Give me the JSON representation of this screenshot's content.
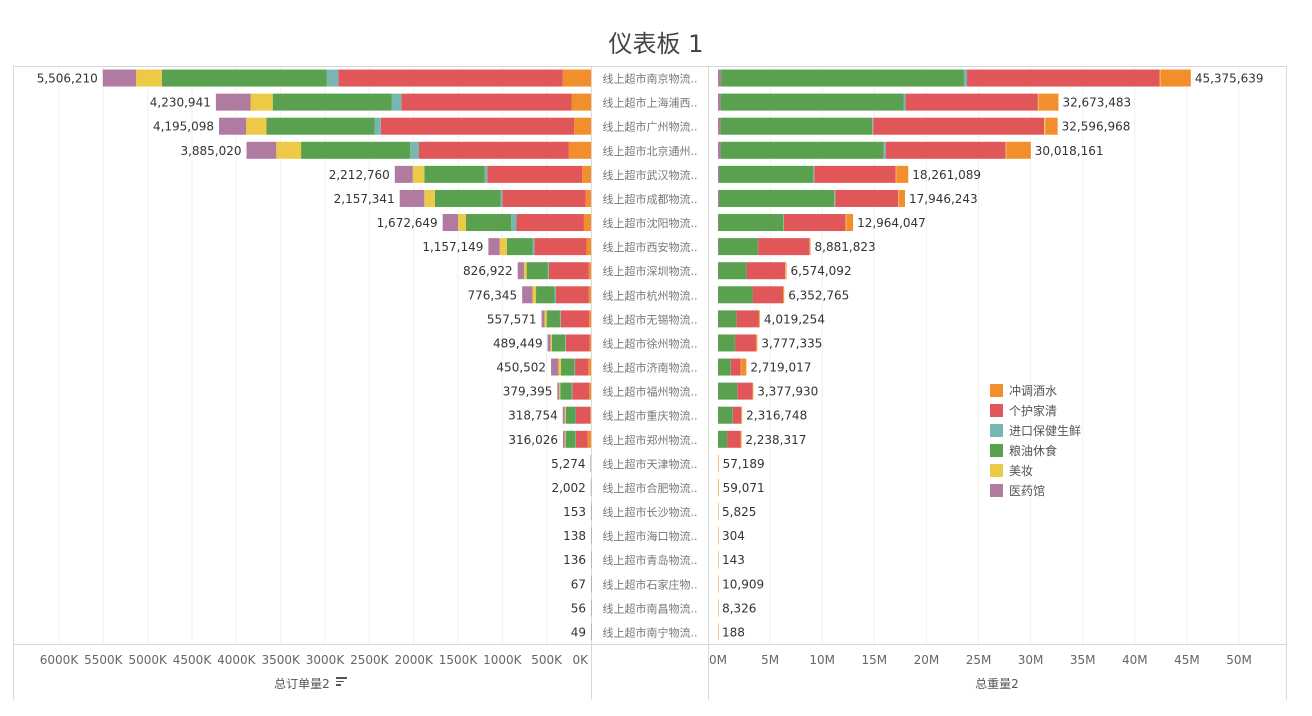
{
  "dashboard": {
    "title": "仪表板 1"
  },
  "legend": {
    "items": [
      {
        "label": "冲调酒水",
        "color": "#F28E2B"
      },
      {
        "label": "个护家清",
        "color": "#E15759"
      },
      {
        "label": "进口保健生鲜",
        "color": "#76B7B2"
      },
      {
        "label": "粮油休食",
        "color": "#59A14F"
      },
      {
        "label": "美妆",
        "color": "#EDC948"
      },
      {
        "label": "医药馆",
        "color": "#B07AA1"
      }
    ]
  },
  "chart_data": [
    {
      "type": "bar",
      "orientation": "horizontal",
      "stacked": true,
      "reversed_axis": true,
      "xlabel": "总订单量2",
      "ticks": [
        "6000K",
        "5500K",
        "5000K",
        "4500K",
        "4000K",
        "3500K",
        "3000K",
        "2500K",
        "2000K",
        "1500K",
        "1000K",
        "500K",
        "0K"
      ],
      "xlim": [
        0,
        6000000
      ],
      "categories": [
        "线上超市南京物流..",
        "线上超市上海浦西..",
        "线上超市广州物流..",
        "线上超市北京通州..",
        "线上超市武汉物流..",
        "线上超市成都物流..",
        "线上超市沈阳物流..",
        "线上超市西安物流..",
        "线上超市深圳物流..",
        "线上超市杭州物流..",
        "线上超市无锡物流..",
        "线上超市徐州物流..",
        "线上超市济南物流..",
        "线上超市福州物流..",
        "线上超市重庆物流..",
        "线上超市郑州物流..",
        "线上超市天津物流..",
        "线上超市合肥物流..",
        "线上超市长沙物流..",
        "线上超市海口物流..",
        "线上超市青岛物流..",
        "线上超市石家庄物..",
        "线上超市南昌物流..",
        "线上超市南宁物流.."
      ],
      "total_labels": [
        "5,506,210",
        "4,230,941",
        "4,195,098",
        "3,885,020",
        "2,212,760",
        "2,157,341",
        "1,672,649",
        "1,157,149",
        "826,922",
        "776,345",
        "557,571",
        "489,449",
        "450,502",
        "379,395",
        "318,754",
        "316,026",
        "5,274",
        "2,002",
        "153",
        "138",
        "136",
        "67",
        "56",
        "49"
      ],
      "series": [
        {
          "name": "冲调酒水",
          "values": [
            320000,
            220000,
            190000,
            250000,
            100000,
            60000,
            80000,
            50000,
            25000,
            25000,
            20000,
            15000,
            30000,
            20000,
            10000,
            40000,
            0,
            0,
            0,
            0,
            0,
            0,
            0,
            0
          ]
        },
        {
          "name": "个护家清",
          "values": [
            2530000,
            1920000,
            2180000,
            1690000,
            1070000,
            940000,
            760000,
            590000,
            450000,
            370000,
            320000,
            270000,
            150000,
            190000,
            160000,
            130000,
            0,
            0,
            0,
            0,
            0,
            0,
            0,
            0
          ]
        },
        {
          "name": "进口保健生鲜",
          "values": [
            130000,
            110000,
            70000,
            100000,
            30000,
            20000,
            60000,
            20000,
            11000,
            15000,
            10000,
            7000,
            8000,
            7000,
            5000,
            6000,
            0,
            0,
            0,
            0,
            0,
            0,
            0,
            0
          ]
        },
        {
          "name": "粮油休食",
          "values": [
            1860000,
            1340000,
            1220000,
            1230000,
            680000,
            740000,
            510000,
            290000,
            240000,
            210000,
            150000,
            150000,
            150000,
            130000,
            110000,
            110000,
            0,
            0,
            0,
            0,
            0,
            0,
            0,
            0
          ]
        },
        {
          "name": "美妆",
          "values": [
            290000,
            250000,
            230000,
            280000,
            130000,
            120000,
            90000,
            80000,
            30000,
            40000,
            25000,
            15000,
            30000,
            12000,
            12000,
            10000,
            0,
            0,
            0,
            0,
            0,
            0,
            0,
            0
          ]
        },
        {
          "name": "医药馆",
          "values": [
            376210,
            390941,
            305098,
            335020,
            202760,
            277341,
            172649,
            127149,
            70922,
            116345,
            32571,
            32449,
            82502,
            20395,
            21754,
            20026,
            5274,
            2002,
            153,
            138,
            136,
            67,
            56,
            49
          ]
        }
      ]
    },
    {
      "type": "bar",
      "orientation": "horizontal",
      "stacked": true,
      "xlabel": "总重量2",
      "ticks": [
        "0M",
        "5M",
        "10M",
        "15M",
        "20M",
        "25M",
        "30M",
        "35M",
        "40M",
        "45M",
        "50M"
      ],
      "xlim": [
        0,
        50000000
      ],
      "total_labels": [
        "45,375,639",
        "32,673,483",
        "32,596,968",
        "30,018,161",
        "18,261,089",
        "17,946,243",
        "12,964,047",
        "8,881,823",
        "6,574,092",
        "6,352,765",
        "4,019,254",
        "3,777,335",
        "2,719,017",
        "3,377,930",
        "2,316,748",
        "2,238,317",
        "57,189",
        "59,071",
        "5,825",
        "304",
        "143",
        "10,909",
        "8,326",
        "188"
      ],
      "series": [
        {
          "name": "医药馆",
          "values": [
            300000,
            250000,
            250000,
            250000,
            100000,
            100000,
            50000,
            50000,
            30000,
            30000,
            20000,
            20000,
            20000,
            20000,
            15000,
            10000,
            0,
            0,
            0,
            0,
            0,
            0,
            0,
            0
          ]
        },
        {
          "name": "粮油休食",
          "values": [
            23300000,
            17550000,
            14550000,
            15650000,
            9050000,
            11050000,
            6220000,
            3780000,
            2700000,
            3280000,
            1750000,
            1600000,
            1200000,
            1820000,
            1400000,
            860000,
            0,
            0,
            0,
            0,
            0,
            0,
            0,
            0
          ]
        },
        {
          "name": "进口保健生鲜",
          "values": [
            300000,
            200000,
            100000,
            200000,
            100000,
            100000,
            50000,
            30000,
            20000,
            20000,
            20000,
            20000,
            20000,
            20000,
            20000,
            20000,
            0,
            0,
            0,
            0,
            0,
            0,
            0,
            0
          ]
        },
        {
          "name": "个护家清",
          "values": [
            18500000,
            12700000,
            16400000,
            11500000,
            7810000,
            6050000,
            5920000,
            4940000,
            3700000,
            2910000,
            2140000,
            2030000,
            950000,
            1450000,
            800000,
            1300000,
            0,
            0,
            0,
            0,
            0,
            0,
            0,
            0
          ]
        },
        {
          "name": "美妆",
          "values": [
            75639,
            73483,
            96968,
            68161,
            51089,
            46243,
            74047,
            31823,
            44092,
            32765,
            29254,
            27335,
            29017,
            27930,
            31748,
            28317,
            0,
            0,
            0,
            0,
            0,
            0,
            0,
            0
          ]
        },
        {
          "name": "冲调酒水",
          "values": [
            2900000,
            1900000,
            1200000,
            2350000,
            1150000,
            600000,
            650000,
            50000,
            80000,
            80000,
            60000,
            80000,
            500000,
            40000,
            50000,
            20000,
            57189,
            59071,
            5825,
            304,
            143,
            10909,
            8326,
            188
          ]
        }
      ]
    }
  ]
}
